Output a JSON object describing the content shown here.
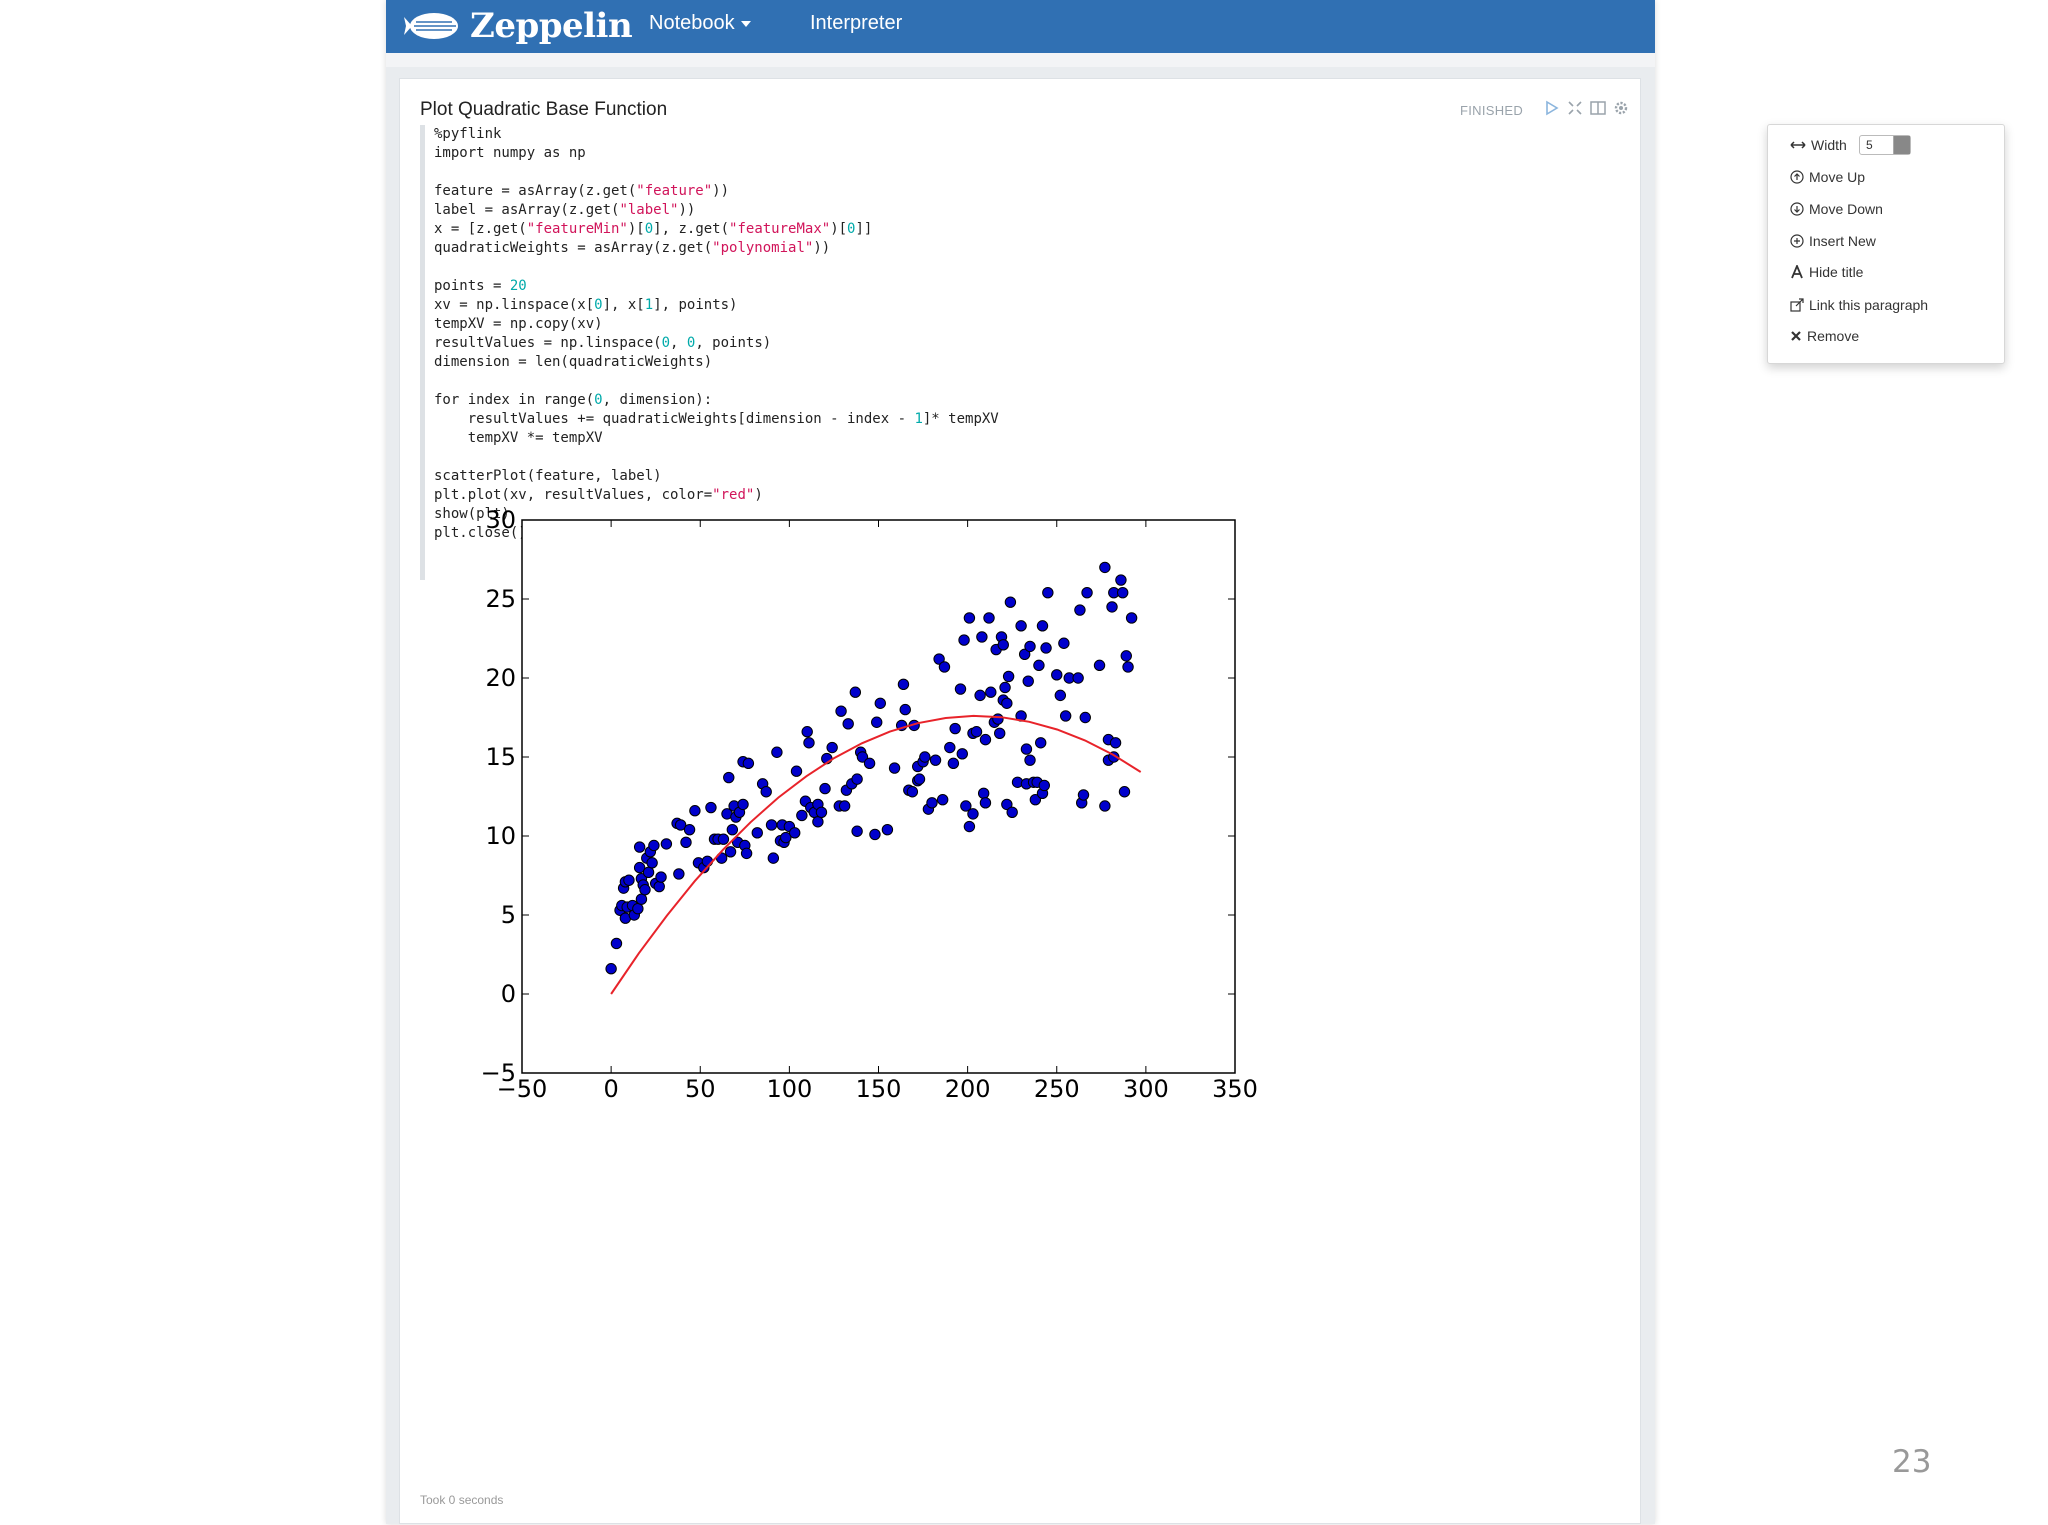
{
  "navbar": {
    "brand": "Zeppelin",
    "notebook_label": "Notebook",
    "interpreter_label": "Interpreter",
    "bg_color": "#3070b3"
  },
  "paragraph": {
    "title": "Plot Quadratic Base Function",
    "status": "FINISHED",
    "footer": "Took 0 seconds",
    "code_lines": [
      "%pyflink",
      "import numpy as np",
      "",
      "feature = asArray(z.get(\"feature\"))",
      "label = asArray(z.get(\"label\"))",
      "x = [z.get(\"featureMin\")[0], z.get(\"featureMax\")[0]]",
      "quadraticWeights = asArray(z.get(\"polynomial\"))",
      "",
      "points = 20",
      "xv = np.linspace(x[0], x[1], points)",
      "tempXV = np.copy(xv)",
      "resultValues = np.linspace(0, 0, points)",
      "dimension = len(quadraticWeights)",
      "",
      "for index in range(0, dimension):",
      "    resultValues += quadraticWeights[dimension - index - 1]* tempXV",
      "    tempXV *= tempXV",
      "",
      "scatterPlot(feature, label)",
      "plt.plot(xv, resultValues, color=\"red\")",
      "show(plt)",
      "plt.close()"
    ]
  },
  "menu": {
    "width_label": "Width",
    "width_value": "5",
    "move_up": "Move Up",
    "move_down": "Move Down",
    "insert_new": "Insert New",
    "hide_title": "Hide title",
    "link_paragraph": "Link this paragraph",
    "remove": "Remove"
  },
  "slide_number": "23",
  "chart_data": {
    "type": "scatter",
    "xlim": [
      -50,
      350
    ],
    "ylim": [
      -5,
      30
    ],
    "xticks": [
      -50,
      0,
      50,
      100,
      150,
      200,
      250,
      300,
      350
    ],
    "yticks": [
      -5,
      0,
      5,
      10,
      15,
      20,
      25,
      30
    ],
    "grid": false,
    "colors": {
      "points": "#0000cc",
      "curve": "#e8232a"
    },
    "series": [
      {
        "kind": "scatter",
        "points": [
          [
            0,
            1.6
          ],
          [
            3,
            3.2
          ],
          [
            5,
            5.3
          ],
          [
            6,
            5.6
          ],
          [
            7,
            6.7
          ],
          [
            8,
            7.1
          ],
          [
            8,
            4.8
          ],
          [
            9,
            5.5
          ],
          [
            10,
            7.2
          ],
          [
            12,
            5.6
          ],
          [
            13,
            5.0
          ],
          [
            15,
            5.4
          ],
          [
            16,
            8.0
          ],
          [
            16,
            9.3
          ],
          [
            17,
            6.0
          ],
          [
            17,
            7.3
          ],
          [
            18,
            6.9
          ],
          [
            19,
            6.6
          ],
          [
            20,
            8.6
          ],
          [
            21,
            7.7
          ],
          [
            22,
            9.0
          ],
          [
            23,
            8.3
          ],
          [
            24,
            9.4
          ],
          [
            25,
            7.0
          ],
          [
            27,
            6.8
          ],
          [
            28,
            7.4
          ],
          [
            31,
            9.5
          ],
          [
            37,
            10.8
          ],
          [
            38,
            7.6
          ],
          [
            39,
            10.7
          ],
          [
            42,
            9.6
          ],
          [
            44,
            10.4
          ],
          [
            47,
            11.6
          ],
          [
            49,
            8.3
          ],
          [
            52,
            8.0
          ],
          [
            54,
            8.4
          ],
          [
            56,
            11.8
          ],
          [
            58,
            9.8
          ],
          [
            60,
            9.8
          ],
          [
            62,
            8.6
          ],
          [
            63,
            9.8
          ],
          [
            65,
            11.4
          ],
          [
            66,
            13.7
          ],
          [
            67,
            9.0
          ],
          [
            68,
            10.4
          ],
          [
            69,
            11.9
          ],
          [
            70,
            11.2
          ],
          [
            71,
            9.6
          ],
          [
            72,
            11.5
          ],
          [
            74,
            12.0
          ],
          [
            74,
            14.7
          ],
          [
            75,
            9.4
          ],
          [
            76,
            8.9
          ],
          [
            77,
            14.6
          ],
          [
            82,
            10.2
          ],
          [
            85,
            13.3
          ],
          [
            87,
            12.8
          ],
          [
            90,
            10.7
          ],
          [
            91,
            8.6
          ],
          [
            93,
            15.3
          ],
          [
            95,
            9.7
          ],
          [
            96,
            10.7
          ],
          [
            97,
            9.6
          ],
          [
            98,
            9.9
          ],
          [
            100,
            10.6
          ],
          [
            103,
            10.2
          ],
          [
            104,
            14.1
          ],
          [
            107,
            11.3
          ],
          [
            109,
            12.2
          ],
          [
            110,
            16.6
          ],
          [
            111,
            15.9
          ],
          [
            112,
            11.8
          ],
          [
            114,
            11.5
          ],
          [
            116,
            10.9
          ],
          [
            116,
            12.0
          ],
          [
            118,
            11.5
          ],
          [
            120,
            13.0
          ],
          [
            121,
            14.9
          ],
          [
            124,
            15.6
          ],
          [
            128,
            11.9
          ],
          [
            129,
            17.9
          ],
          [
            131,
            11.9
          ],
          [
            132,
            12.9
          ],
          [
            133,
            17.1
          ],
          [
            135,
            13.3
          ],
          [
            137,
            19.1
          ],
          [
            138,
            10.3
          ],
          [
            138,
            13.6
          ],
          [
            140,
            15.3
          ],
          [
            141,
            15.0
          ],
          [
            145,
            14.6
          ],
          [
            148,
            10.1
          ],
          [
            149,
            17.2
          ],
          [
            151,
            18.4
          ],
          [
            155,
            10.4
          ],
          [
            159,
            14.3
          ],
          [
            163,
            17.0
          ],
          [
            164,
            19.6
          ],
          [
            165,
            18.0
          ],
          [
            167,
            12.9
          ],
          [
            169,
            12.8
          ],
          [
            170,
            17.0
          ],
          [
            172,
            13.5
          ],
          [
            172,
            14.4
          ],
          [
            173,
            13.6
          ],
          [
            175,
            14.7
          ],
          [
            176,
            15.0
          ],
          [
            178,
            11.7
          ],
          [
            180,
            12.1
          ],
          [
            182,
            14.8
          ],
          [
            184,
            21.2
          ],
          [
            186,
            12.3
          ],
          [
            187,
            20.7
          ],
          [
            190,
            15.6
          ],
          [
            192,
            14.6
          ],
          [
            193,
            16.8
          ],
          [
            196,
            19.3
          ],
          [
            197,
            15.2
          ],
          [
            198,
            22.4
          ],
          [
            199,
            11.9
          ],
          [
            201,
            10.6
          ],
          [
            201,
            23.8
          ],
          [
            203,
            11.4
          ],
          [
            203,
            16.5
          ],
          [
            205,
            16.6
          ],
          [
            207,
            18.9
          ],
          [
            208,
            22.6
          ],
          [
            209,
            12.7
          ],
          [
            210,
            12.1
          ],
          [
            210,
            16.1
          ],
          [
            212,
            23.8
          ],
          [
            213,
            19.1
          ],
          [
            215,
            17.2
          ],
          [
            216,
            21.8
          ],
          [
            217,
            17.4
          ],
          [
            218,
            16.5
          ],
          [
            219,
            22.6
          ],
          [
            220,
            18.6
          ],
          [
            220,
            22.1
          ],
          [
            221,
            19.4
          ],
          [
            222,
            12.0
          ],
          [
            222,
            18.4
          ],
          [
            223,
            20.1
          ],
          [
            224,
            24.8
          ],
          [
            225,
            11.5
          ],
          [
            228,
            13.4
          ],
          [
            230,
            17.6
          ],
          [
            230,
            23.3
          ],
          [
            232,
            21.5
          ],
          [
            233,
            15.5
          ],
          [
            233,
            13.3
          ],
          [
            234,
            19.8
          ],
          [
            235,
            22.0
          ],
          [
            235,
            14.8
          ],
          [
            237,
            13.4
          ],
          [
            238,
            12.3
          ],
          [
            239,
            13.4
          ],
          [
            240,
            20.8
          ],
          [
            241,
            15.9
          ],
          [
            242,
            23.3
          ],
          [
            242,
            12.7
          ],
          [
            243,
            13.2
          ],
          [
            244,
            21.9
          ],
          [
            245,
            25.4
          ],
          [
            250,
            20.2
          ],
          [
            252,
            18.9
          ],
          [
            254,
            22.2
          ],
          [
            255,
            17.6
          ],
          [
            257,
            20.0
          ],
          [
            262,
            20.0
          ],
          [
            263,
            24.3
          ],
          [
            264,
            12.1
          ],
          [
            265,
            12.6
          ],
          [
            266,
            17.5
          ],
          [
            267,
            25.4
          ],
          [
            274,
            20.8
          ],
          [
            277,
            11.9
          ],
          [
            277,
            27.0
          ],
          [
            279,
            14.8
          ],
          [
            279,
            16.1
          ],
          [
            281,
            24.5
          ],
          [
            282,
            15.0
          ],
          [
            282,
            25.4
          ],
          [
            283,
            15.9
          ],
          [
            286,
            26.2
          ],
          [
            287,
            25.4
          ],
          [
            288,
            12.8
          ],
          [
            289,
            21.4
          ],
          [
            290,
            20.7
          ],
          [
            292,
            23.8
          ]
        ]
      },
      {
        "kind": "line",
        "x": [
          0,
          15.6,
          31.3,
          46.9,
          62.6,
          78.2,
          93.8,
          109.5,
          125.1,
          140.7,
          156.4,
          172,
          187.7,
          203.3,
          218.9,
          234.6,
          250.2,
          265.8,
          281.5,
          297.1
        ],
        "y": [
          0,
          2.58,
          4.96,
          7.14,
          9.11,
          10.87,
          12.43,
          13.78,
          14.93,
          15.87,
          16.61,
          17.14,
          17.47,
          17.6,
          17.52,
          17.23,
          16.74,
          16.05,
          15.15,
          14.05
        ]
      }
    ]
  }
}
